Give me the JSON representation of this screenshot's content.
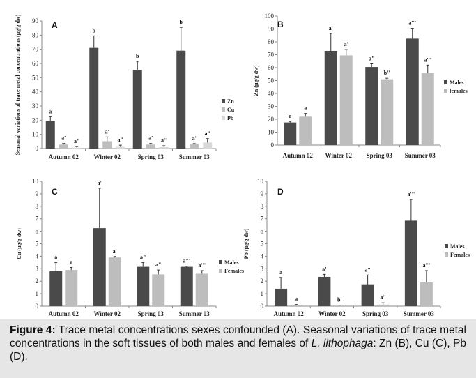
{
  "colors": {
    "dark": "#4a4a4a",
    "light": "#bdbdbd",
    "lighter": "#d8d8d8",
    "axis": "#888888"
  },
  "chart_data": [
    {
      "panel": "A",
      "type": "bar",
      "ylabel": "Seasonal variations of trace metal concentrations (µg/g dw)",
      "ylim": [
        0,
        90
      ],
      "yticks": [
        0,
        10,
        20,
        30,
        40,
        50,
        60,
        70,
        80,
        90
      ],
      "categories": [
        "Autumn 02",
        "Winter 02",
        "Spring 03",
        "Summer 03"
      ],
      "legend_position": "right",
      "series": [
        {
          "name": "Zn",
          "color": "#4a4a4a",
          "values": [
            19.5,
            71,
            55.5,
            69
          ],
          "errors": [
            3,
            8.5,
            6,
            16.5
          ],
          "labels": [
            "a",
            "b",
            "b",
            "b"
          ]
        },
        {
          "name": "Cu",
          "color": "#bdbdbd",
          "values": [
            2.8,
            5.2,
            2.8,
            3.0
          ],
          "errors": [
            0.8,
            3.0,
            0.8,
            0.5
          ],
          "labels": [
            "a'",
            "a'",
            "a'",
            "a'"
          ]
        },
        {
          "name": "Pb",
          "color": "#d8d8d8",
          "values": [
            0.6,
            1.2,
            1.0,
            4.2
          ],
          "errors": [
            0.8,
            1.2,
            1.0,
            2.8
          ],
          "labels": [
            "a\"",
            "a\"",
            "a\"",
            "a\""
          ]
        }
      ]
    },
    {
      "panel": "B",
      "type": "bar",
      "ylabel": "Zn (µg/g dw)",
      "ylim": [
        0,
        100
      ],
      "yticks": [
        0,
        10,
        20,
        30,
        40,
        50,
        60,
        70,
        80,
        90,
        100
      ],
      "categories": [
        "Autumn 02",
        "Winter 02",
        "Spring 03",
        "Summer 03"
      ],
      "legend_position": "right",
      "series": [
        {
          "name": "Males",
          "color": "#4a4a4a",
          "values": [
            17.5,
            73,
            60.5,
            82.5
          ],
          "errors": [
            0.8,
            13.5,
            2.5,
            8
          ],
          "labels": [
            "a",
            "a'",
            "a\"",
            "a'''"
          ]
        },
        {
          "name": "females",
          "color": "#bdbdbd",
          "values": [
            22,
            69.5,
            51,
            56
          ],
          "errors": [
            2.5,
            4.5,
            0.8,
            6
          ],
          "labels": [
            "a",
            "a'",
            "b\"",
            "a'''"
          ]
        }
      ]
    },
    {
      "panel": "C",
      "type": "bar",
      "ylabel": "Cu (µg/g dw)",
      "ylim": [
        0,
        10
      ],
      "yticks": [
        0,
        1,
        2,
        3,
        4,
        5,
        6,
        7,
        8,
        9,
        10
      ],
      "categories": [
        "Autumn 02",
        "Winter 02",
        "Spring 03",
        "Summer 03"
      ],
      "legend_position": "right",
      "series": [
        {
          "name": "Males",
          "color": "#4a4a4a",
          "values": [
            2.8,
            6.25,
            3.15,
            3.15
          ],
          "errors": [
            0.7,
            3.2,
            0.35,
            0.05
          ],
          "labels": [
            "a",
            "a'",
            "a\"",
            "a'''"
          ]
        },
        {
          "name": "Females",
          "color": "#bdbdbd",
          "values": [
            2.9,
            3.9,
            2.55,
            2.6
          ],
          "errors": [
            0.2,
            0.08,
            0.35,
            0.25
          ],
          "labels": [
            "a",
            "a'",
            "a\"",
            "a'''"
          ]
        }
      ]
    },
    {
      "panel": "D",
      "type": "bar",
      "ylabel": "Pb (µg/g dw)",
      "ylim": [
        0,
        10
      ],
      "yticks": [
        0,
        1,
        2,
        3,
        4,
        5,
        6,
        7,
        8,
        9,
        10
      ],
      "categories": [
        "Autumn 02",
        "Winter 02",
        "Spring 03",
        "Summer 03"
      ],
      "legend_position": "right",
      "series": [
        {
          "name": "Males",
          "color": "#4a4a4a",
          "values": [
            1.4,
            2.35,
            1.75,
            6.85
          ],
          "errors": [
            0.9,
            0.2,
            0.75,
            1.7
          ],
          "labels": [
            "a",
            "a'",
            "a\"",
            "a'''"
          ]
        },
        {
          "name": "Females",
          "color": "#bdbdbd",
          "values": [
            0.08,
            0.05,
            0.12,
            1.9
          ],
          "errors": [
            0.05,
            0.03,
            0.15,
            0.95
          ],
          "labels": [
            "a",
            "b'",
            "a\"",
            "a'''"
          ]
        }
      ]
    }
  ],
  "caption": {
    "label": "Figure 4:",
    "text_1": " Trace metal concentrations sexes confounded (A). Seasonal variations of trace metal concentrations in the soft tissues of both males and females of ",
    "species": "L. lithophaga",
    "text_2": ":  Zn (B), Cu (C), Pb (D)."
  }
}
